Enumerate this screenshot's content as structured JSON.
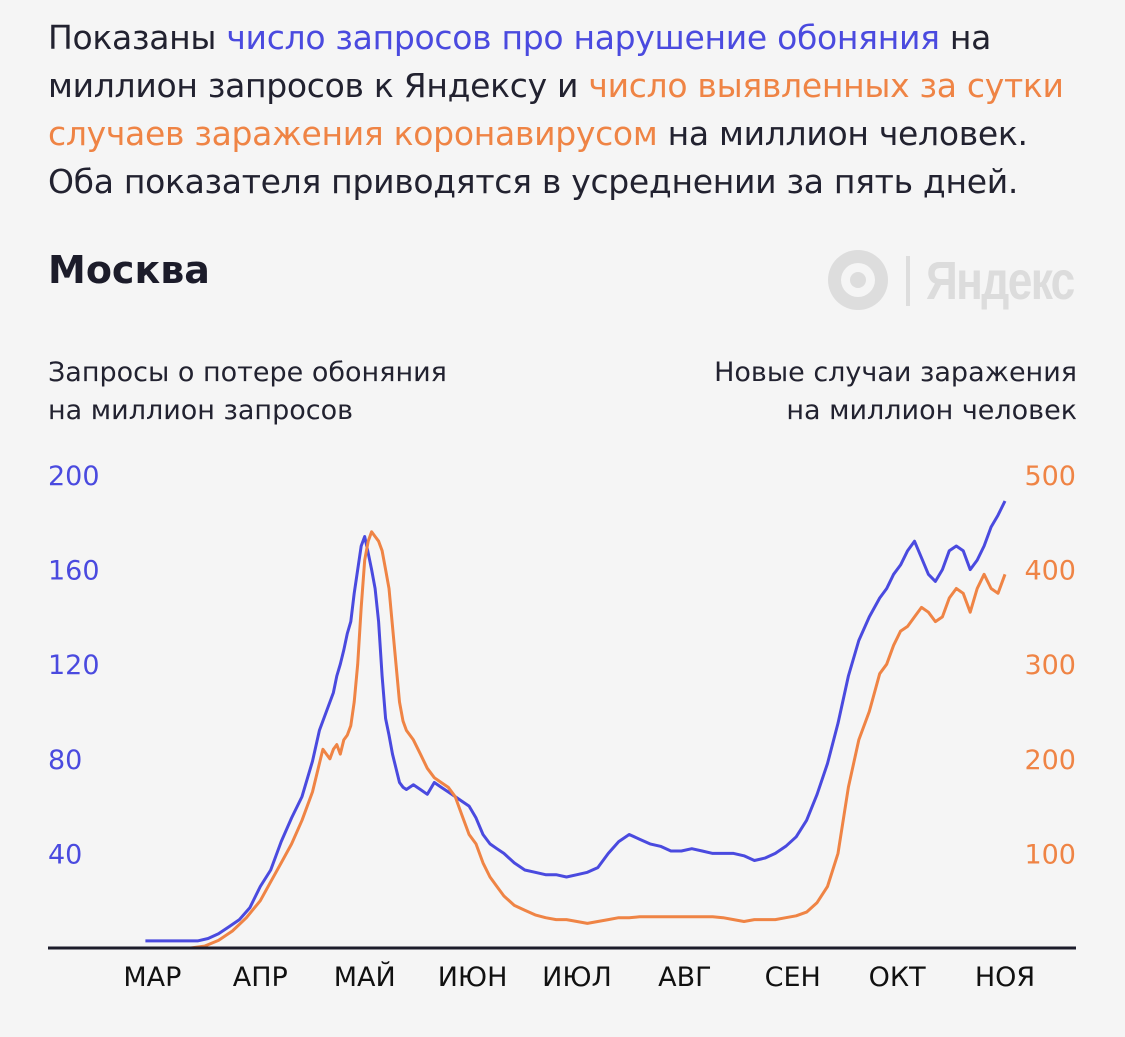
{
  "intro": {
    "part1": "Показаны ",
    "blue_text": "число запросов про нарушение обоняния",
    "part2": " на миллион запросов к Яндексу и ",
    "orange_text": "число выявленных за сутки случаев заражения коронавирусом",
    "part3": " на миллион человек. Оба показателя приводятся в усреднении за пять дней."
  },
  "city": "Москва",
  "logo": {
    "word": "Яндекс",
    "icon": "yandex-logo-icon"
  },
  "colors": {
    "blue": "#4a4adf",
    "orange": "#ef8445",
    "axis": "#1c1c2a"
  },
  "chart_data": {
    "type": "line",
    "title": "Москва",
    "ylabel_left": [
      "Запросы о потере обоняния",
      "на миллион запросов"
    ],
    "ylabel_right": [
      "Новые случаи заражения",
      "на миллион человек"
    ],
    "ylim_left": [
      0,
      200
    ],
    "ylim_right": [
      0,
      500
    ],
    "yticks_left": [
      "200",
      "160",
      "120",
      "80",
      "40"
    ],
    "yticks_left_values": [
      200,
      160,
      120,
      80,
      40
    ],
    "yticks_right": [
      "500",
      "400",
      "300",
      "200",
      "100"
    ],
    "yticks_right_values": [
      500,
      400,
      300,
      200,
      100
    ],
    "xlim": [
      1,
      276
    ],
    "month_labels": [
      "МАР",
      "АПР",
      "МАЙ",
      "ИЮН",
      "ИЮЛ",
      "АВГ",
      "СЕН",
      "ОКТ",
      "НОЯ"
    ],
    "month_label_x": [
      31,
      62,
      92,
      123,
      153,
      184,
      215,
      245,
      276
    ],
    "grid": false,
    "series": [
      {
        "axis": "left",
        "color": "#4a4adf",
        "x": [
          29,
          33,
          37,
          41,
          44,
          47,
          50,
          53,
          56,
          59,
          62,
          65,
          68,
          71,
          74,
          77,
          79,
          81,
          83,
          84,
          85,
          86,
          87,
          88,
          89,
          90,
          91,
          92,
          93,
          94,
          95,
          96,
          97,
          98,
          99,
          100,
          101,
          102,
          103,
          104,
          106,
          108,
          110,
          112,
          114,
          116,
          118,
          120,
          122,
          124,
          126,
          128,
          130,
          132,
          135,
          138,
          141,
          144,
          147,
          150,
          153,
          156,
          159,
          162,
          165,
          168,
          171,
          174,
          177,
          180,
          183,
          186,
          189,
          192,
          195,
          198,
          201,
          204,
          207,
          210,
          213,
          216,
          219,
          222,
          225,
          228,
          231,
          234,
          237,
          240,
          242,
          244,
          246,
          248,
          250,
          252,
          254,
          256,
          258,
          260,
          262,
          264,
          266,
          268,
          270,
          272,
          274,
          276
        ],
        "y": [
          3,
          3,
          3,
          3,
          3,
          4,
          6,
          9,
          12,
          17,
          26,
          33,
          45,
          55,
          64,
          79,
          92,
          100,
          108,
          115,
          120,
          126,
          133,
          138,
          150,
          160,
          170,
          174,
          167,
          160,
          152,
          138,
          115,
          97,
          90,
          82,
          76,
          70,
          68,
          67,
          69,
          67,
          65,
          70,
          68,
          66,
          64,
          62,
          60,
          55,
          48,
          44,
          42,
          40,
          36,
          33,
          32,
          31,
          31,
          30,
          31,
          32,
          34,
          40,
          45,
          48,
          46,
          44,
          43,
          41,
          41,
          42,
          41,
          40,
          40,
          40,
          39,
          37,
          38,
          40,
          43,
          47,
          54,
          65,
          78,
          95,
          115,
          130,
          140,
          148,
          152,
          158,
          162,
          168,
          172,
          165,
          158,
          155,
          160,
          168,
          170,
          168,
          160,
          164,
          170,
          178,
          183,
          189
        ],
        "yunit": "left"
      },
      {
        "axis": "right",
        "color": "#ef8445",
        "x": [
          34,
          38,
          42,
          46,
          50,
          54,
          58,
          62,
          65,
          68,
          71,
          74,
          77,
          79,
          80,
          81,
          82,
          83,
          84,
          85,
          86,
          87,
          88,
          89,
          90,
          91,
          92,
          93,
          94,
          95,
          96,
          97,
          98,
          99,
          100,
          101,
          102,
          103,
          104,
          106,
          108,
          110,
          112,
          114,
          116,
          118,
          120,
          122,
          124,
          126,
          128,
          130,
          132,
          135,
          138,
          141,
          144,
          147,
          150,
          153,
          156,
          159,
          162,
          165,
          168,
          171,
          174,
          177,
          180,
          183,
          186,
          189,
          192,
          195,
          198,
          201,
          204,
          207,
          210,
          213,
          216,
          219,
          222,
          225,
          228,
          231,
          234,
          237,
          240,
          242,
          244,
          246,
          248,
          250,
          252,
          254,
          256,
          258,
          260,
          262,
          264,
          266,
          268,
          270,
          272,
          274,
          276
        ],
        "y": [
          0,
          0,
          0,
          2,
          8,
          18,
          32,
          50,
          70,
          90,
          110,
          135,
          165,
          195,
          210,
          205,
          200,
          210,
          215,
          205,
          220,
          225,
          235,
          260,
          300,
          360,
          410,
          430,
          440,
          435,
          430,
          420,
          400,
          380,
          340,
          300,
          260,
          240,
          230,
          220,
          205,
          190,
          180,
          175,
          170,
          160,
          140,
          120,
          110,
          90,
          75,
          65,
          55,
          45,
          40,
          35,
          32,
          30,
          30,
          28,
          26,
          28,
          30,
          32,
          32,
          33,
          33,
          33,
          33,
          33,
          33,
          33,
          33,
          32,
          30,
          28,
          30,
          30,
          30,
          32,
          34,
          38,
          48,
          65,
          100,
          170,
          220,
          250,
          290,
          300,
          320,
          335,
          340,
          350,
          360,
          355,
          345,
          350,
          370,
          380,
          375,
          355,
          380,
          395,
          380,
          375,
          395
        ],
        "yunit": "right"
      }
    ]
  }
}
